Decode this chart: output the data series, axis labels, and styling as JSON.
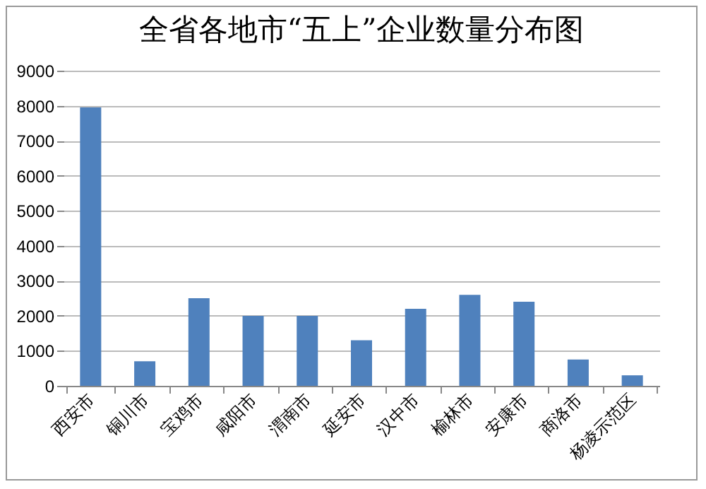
{
  "chart_data": {
    "type": "bar",
    "title": "全省各地市“五上”企业数量分布图",
    "categories": [
      "西安市",
      "铜川市",
      "宝鸡市",
      "咸阳市",
      "渭南市",
      "延安市",
      "汉中市",
      "榆林市",
      "安康市",
      "商洛市",
      "杨凌示范区"
    ],
    "values": [
      7950,
      700,
      2500,
      2000,
      2000,
      1300,
      2200,
      2600,
      2400,
      750,
      300
    ],
    "color": "#4f81bd",
    "ylim": [
      0,
      9000
    ],
    "yticks": [
      0,
      1000,
      2000,
      3000,
      4000,
      5000,
      6000,
      7000,
      8000,
      9000
    ],
    "grid": "y"
  }
}
